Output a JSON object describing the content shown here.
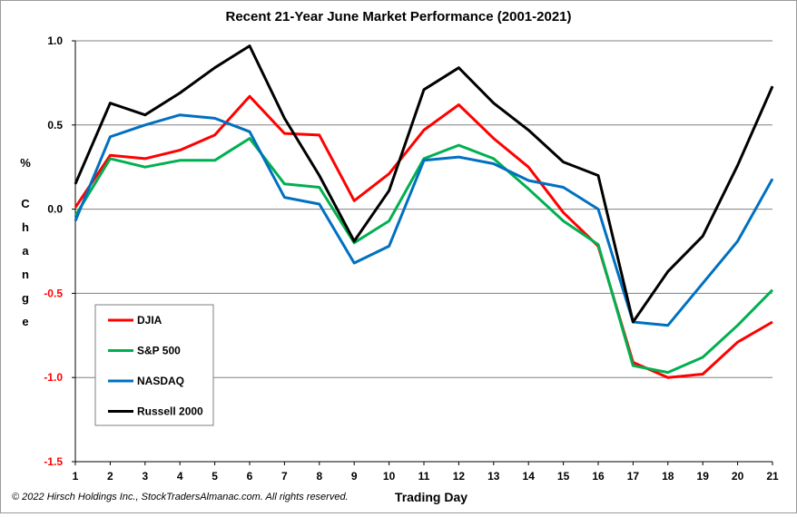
{
  "chart_data": {
    "type": "line",
    "title": "Recent 21-Year June Market Performance (2001-2021)",
    "xlabel": "Trading Day",
    "ylabel_top": "%",
    "ylabel_letters": [
      "C",
      "h",
      "a",
      "n",
      "g",
      "e"
    ],
    "copyright": "© 2022 Hirsch  Holdings Inc., StockTradersAlmanac.com.  All rights reserved.",
    "categories": [
      "1",
      "2",
      "3",
      "4",
      "5",
      "6",
      "7",
      "8",
      "9",
      "10",
      "11",
      "12",
      "13",
      "14",
      "15",
      "16",
      "17",
      "18",
      "19",
      "20",
      "21"
    ],
    "yticks": [
      "1.0",
      "0.5",
      "0.0",
      "-0.5",
      "-1.0",
      "-1.5"
    ],
    "ylim": [
      -1.5,
      1.0
    ],
    "grid": true,
    "legend_position": "bottom-left",
    "series": [
      {
        "name": "DJIA",
        "color": "#ff0000",
        "values": [
          0.01,
          0.32,
          0.3,
          0.35,
          0.44,
          0.67,
          0.45,
          0.44,
          0.05,
          0.21,
          0.47,
          0.62,
          0.42,
          0.25,
          -0.02,
          -0.22,
          -0.91,
          -1.0,
          -0.98,
          -0.79,
          -0.67
        ]
      },
      {
        "name": "S&P 500",
        "color": "#00b050",
        "values": [
          -0.04,
          0.3,
          0.25,
          0.29,
          0.29,
          0.42,
          0.15,
          0.13,
          -0.2,
          -0.07,
          0.3,
          0.38,
          0.3,
          0.12,
          -0.07,
          -0.21,
          -0.93,
          -0.97,
          -0.88,
          -0.69,
          -0.48
        ]
      },
      {
        "name": "NASDAQ",
        "color": "#0070c0",
        "values": [
          -0.07,
          0.43,
          0.5,
          0.56,
          0.54,
          0.46,
          0.07,
          0.03,
          -0.32,
          -0.22,
          0.29,
          0.31,
          0.27,
          0.17,
          0.13,
          0.0,
          -0.67,
          -0.69,
          -0.44,
          -0.19,
          0.18
        ]
      },
      {
        "name": "Russell 2000",
        "color": "#000000",
        "values": [
          0.15,
          0.63,
          0.56,
          0.69,
          0.84,
          0.97,
          0.54,
          0.2,
          -0.19,
          0.11,
          0.71,
          0.84,
          0.63,
          0.47,
          0.28,
          0.2,
          -0.67,
          -0.37,
          -0.16,
          0.26,
          0.73
        ]
      }
    ]
  }
}
